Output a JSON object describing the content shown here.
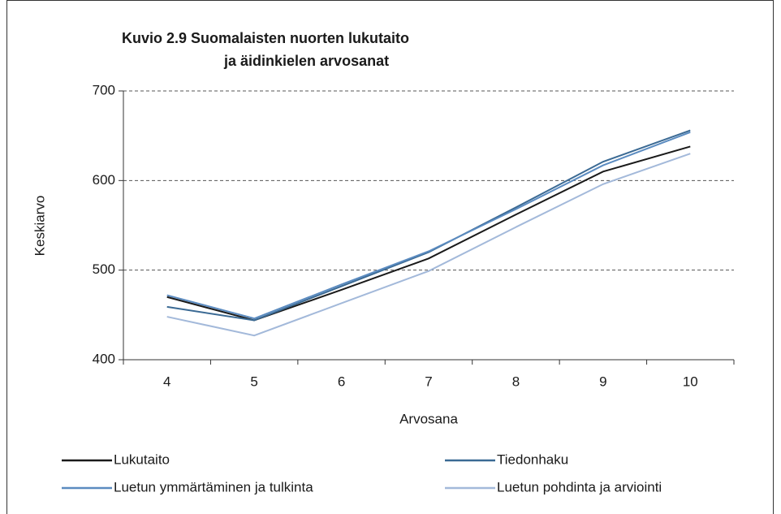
{
  "chart_data": {
    "type": "line",
    "title": [
      "Kuvio 2.9  Suomalaisten nuorten lukutaito",
      "ja äidinkielen arvosanat"
    ],
    "x_label": "Arvosana",
    "y_label": "Keskiarvo",
    "categories": [
      "4",
      "5",
      "6",
      "7",
      "8",
      "9",
      "10"
    ],
    "series": [
      {
        "name": "Lukutaito",
        "color": "#1a1a1a",
        "values": [
          470,
          444,
          478,
          513,
          562,
          610,
          638
        ]
      },
      {
        "name": "Tiedonhaku",
        "color": "#3b6a94",
        "values": [
          459,
          444,
          482,
          520,
          570,
          621,
          656
        ]
      },
      {
        "name": "Luetun ymmärtäminen ja tulkinta",
        "color": "#5b8bc0",
        "values": [
          472,
          446,
          484,
          521,
          568,
          617,
          654
        ]
      },
      {
        "name": "Luetun pohdinta ja arviointi",
        "color": "#a3b9da",
        "values": [
          448,
          427,
          463,
          499,
          548,
          596,
          630
        ]
      }
    ],
    "ylim": [
      400,
      700
    ],
    "yticks": [
      400,
      500,
      600,
      700
    ],
    "grid": true
  }
}
